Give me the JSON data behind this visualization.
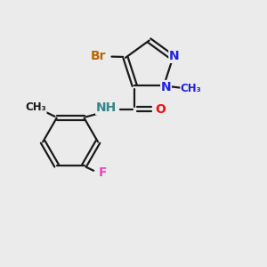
{
  "bg_color": "#ebebeb",
  "bond_color": "#1a1a1a",
  "bond_width": 1.6,
  "atom_colors": {
    "N": "#2020dd",
    "O": "#ee1111",
    "Br": "#bb6600",
    "F": "#ee44bb",
    "NH": "#338888",
    "C": "#1a1a1a"
  },
  "font_size": 10,
  "font_size_sub": 8.5
}
